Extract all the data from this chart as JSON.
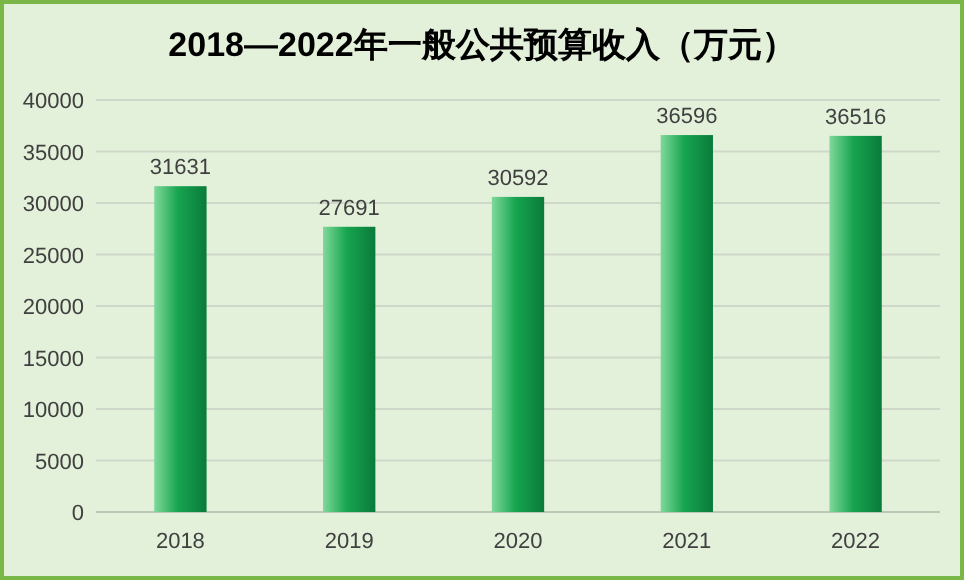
{
  "chart_data": {
    "type": "bar",
    "title": "2018—2022年一般公共预算收入（万元）",
    "categories": [
      "2018",
      "2019",
      "2020",
      "2021",
      "2022"
    ],
    "values": [
      31631,
      27691,
      30592,
      36596,
      36516
    ],
    "color": "#17a550",
    "ylim": [
      0,
      40000
    ],
    "yticks": [
      0,
      5000,
      10000,
      15000,
      20000,
      25000,
      30000,
      35000,
      40000
    ],
    "grid": "y",
    "data_labels": true
  }
}
